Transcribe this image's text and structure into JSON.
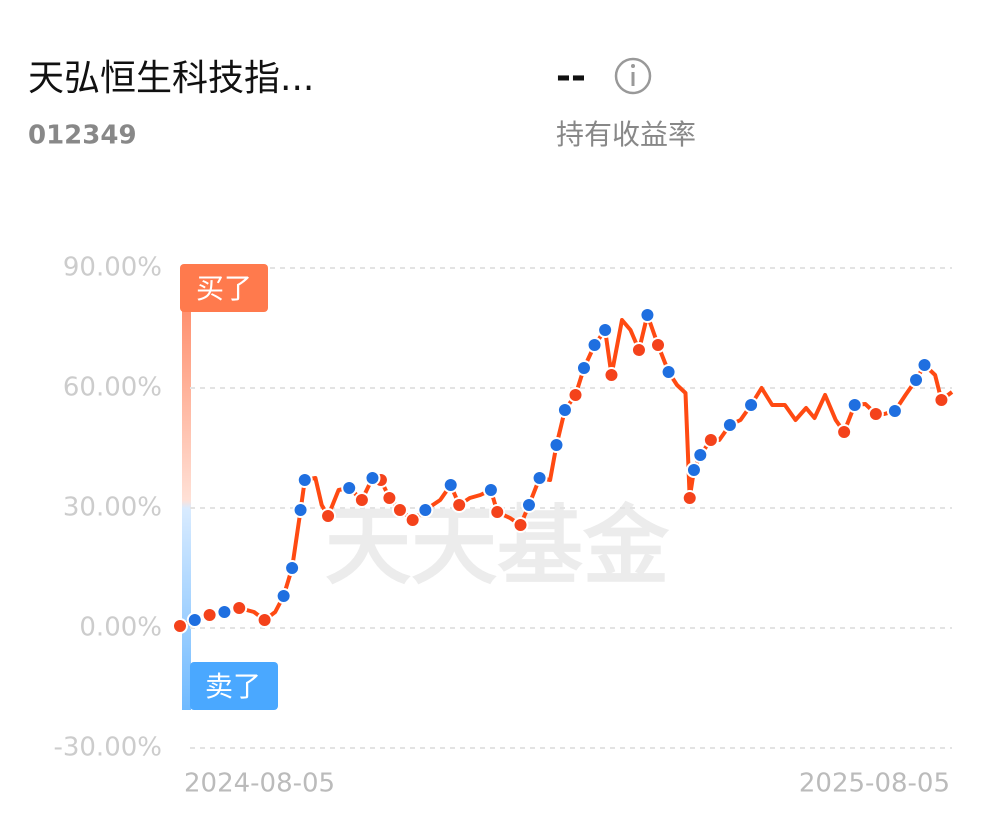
{
  "header": {
    "title": "天弘恒生科技指...",
    "code": "012349",
    "return_value": "--",
    "return_label": "持有收益率"
  },
  "watermark": "天天基金",
  "chart_data": {
    "type": "line",
    "x": [
      "2024-08-05",
      "2024-08-12",
      "2024-08-19",
      "2024-08-26",
      "2024-09-02",
      "2024-09-09",
      "2024-09-14",
      "2024-09-19",
      "2024-09-23",
      "2024-09-27",
      "2024-10-01",
      "2024-10-03",
      "2024-10-08",
      "2024-10-11",
      "2024-10-14",
      "2024-10-19",
      "2024-10-24",
      "2024-10-30",
      "2024-11-04",
      "2024-11-08",
      "2024-11-12",
      "2024-11-17",
      "2024-11-23",
      "2024-11-29",
      "2024-12-06",
      "2024-12-11",
      "2024-12-15",
      "2024-12-20",
      "2024-12-25",
      "2024-12-30",
      "2025-01-02",
      "2025-01-08",
      "2025-01-13",
      "2025-01-17",
      "2025-01-22",
      "2025-01-27",
      "2025-01-30",
      "2025-02-03",
      "2025-02-08",
      "2025-02-12",
      "2025-02-17",
      "2025-02-22",
      "2025-02-25",
      "2025-03-02",
      "2025-03-06",
      "2025-03-10",
      "2025-03-14",
      "2025-03-19",
      "2025-03-24",
      "2025-03-28",
      "2025-04-01",
      "2025-04-03",
      "2025-04-05",
      "2025-04-08",
      "2025-04-13",
      "2025-04-17",
      "2025-04-22",
      "2025-04-27",
      "2025-05-02",
      "2025-05-07",
      "2025-05-12",
      "2025-05-18",
      "2025-05-23",
      "2025-05-28",
      "2025-06-01",
      "2025-06-06",
      "2025-06-11",
      "2025-06-15",
      "2025-06-20",
      "2025-06-25",
      "2025-06-30",
      "2025-07-04",
      "2025-07-09",
      "2025-07-14",
      "2025-07-19",
      "2025-07-23",
      "2025-07-28",
      "2025-07-31",
      "2025-08-05"
    ],
    "series": [
      {
        "color": "#ff4a12",
        "values": [
          0.5,
          2,
          3.25,
          4,
          5,
          4,
          2,
          4,
          8,
          15,
          29.5,
          37,
          37.5,
          30.75,
          28,
          34.5,
          35,
          32,
          37.5,
          37,
          32.5,
          29.5,
          27,
          29.5,
          32,
          35.75,
          30.75,
          32.5,
          33.25,
          34.5,
          29,
          27.5,
          25.75,
          30.75,
          37.5,
          37,
          45.75,
          54.5,
          58.25,
          65,
          70.75,
          74.5,
          63.25,
          77,
          74.5,
          69.5,
          78.25,
          70.75,
          64,
          60.75,
          58.75,
          32.5,
          39.5,
          43.25,
          47,
          47,
          50.75,
          52,
          55.75,
          60,
          55.75,
          55.75,
          52,
          55,
          52.5,
          58.25,
          52,
          49,
          55.75,
          56,
          53.5,
          53.5,
          54.25,
          58.25,
          62,
          65.75,
          63.25,
          57,
          59
        ]
      },
      {
        "type": "scatter",
        "name": "买了",
        "color": "#f4421b",
        "x": [
          "2024-08-05",
          "2024-08-19",
          "2024-09-02",
          "2024-09-14",
          "2024-10-14",
          "2024-10-30",
          "2024-11-08",
          "2024-11-12",
          "2024-11-17",
          "2024-11-23",
          "2024-12-15",
          "2025-01-02",
          "2025-01-13",
          "2025-02-08",
          "2025-02-25",
          "2025-03-10",
          "2025-03-19",
          "2025-04-03",
          "2025-04-13",
          "2025-06-15",
          "2025-06-30",
          "2025-07-31"
        ],
        "values": [
          0.5,
          3.25,
          5,
          2,
          28,
          32,
          37,
          32.5,
          29.5,
          27,
          30.75,
          29,
          25.75,
          58.25,
          63.25,
          69.5,
          70.75,
          32.5,
          47,
          49,
          53.5,
          57
        ]
      },
      {
        "type": "scatter",
        "name": "卖了",
        "color": "#1f6fe0",
        "x": [
          "2024-08-12",
          "2024-08-26",
          "2024-09-23",
          "2024-09-27",
          "2024-10-01",
          "2024-10-03",
          "2024-10-24",
          "2024-11-04",
          "2024-11-29",
          "2024-12-11",
          "2024-12-30",
          "2025-01-17",
          "2025-01-22",
          "2025-01-30",
          "2025-02-03",
          "2025-02-12",
          "2025-02-17",
          "2025-02-22",
          "2025-03-14",
          "2025-03-24",
          "2025-04-05",
          "2025-04-08",
          "2025-04-22",
          "2025-05-02",
          "2025-06-20",
          "2025-07-09",
          "2025-07-19",
          "2025-07-23"
        ],
        "values": [
          2,
          4,
          8,
          15,
          29.5,
          37,
          35,
          37.5,
          29.5,
          35.75,
          34.5,
          30.75,
          37.5,
          45.75,
          54.5,
          65,
          70.75,
          74.5,
          78.25,
          64,
          39.5,
          43.25,
          50.75,
          55.75,
          55.75,
          54.25,
          62,
          65.75
        ]
      }
    ],
    "xlim": [
      "2024-08-05",
      "2025-08-05"
    ],
    "xticks": [
      "2024-08-05",
      "2025-08-05"
    ],
    "ylim": [
      -30,
      90
    ],
    "yticks": [
      {
        "value": -30,
        "label": "-30.00%"
      },
      {
        "value": 0,
        "label": "0.00%"
      },
      {
        "value": 30,
        "label": "30.00%"
      },
      {
        "value": 60,
        "label": "60.00%"
      },
      {
        "value": 90,
        "label": "90.00%"
      }
    ],
    "grid": true
  }
}
